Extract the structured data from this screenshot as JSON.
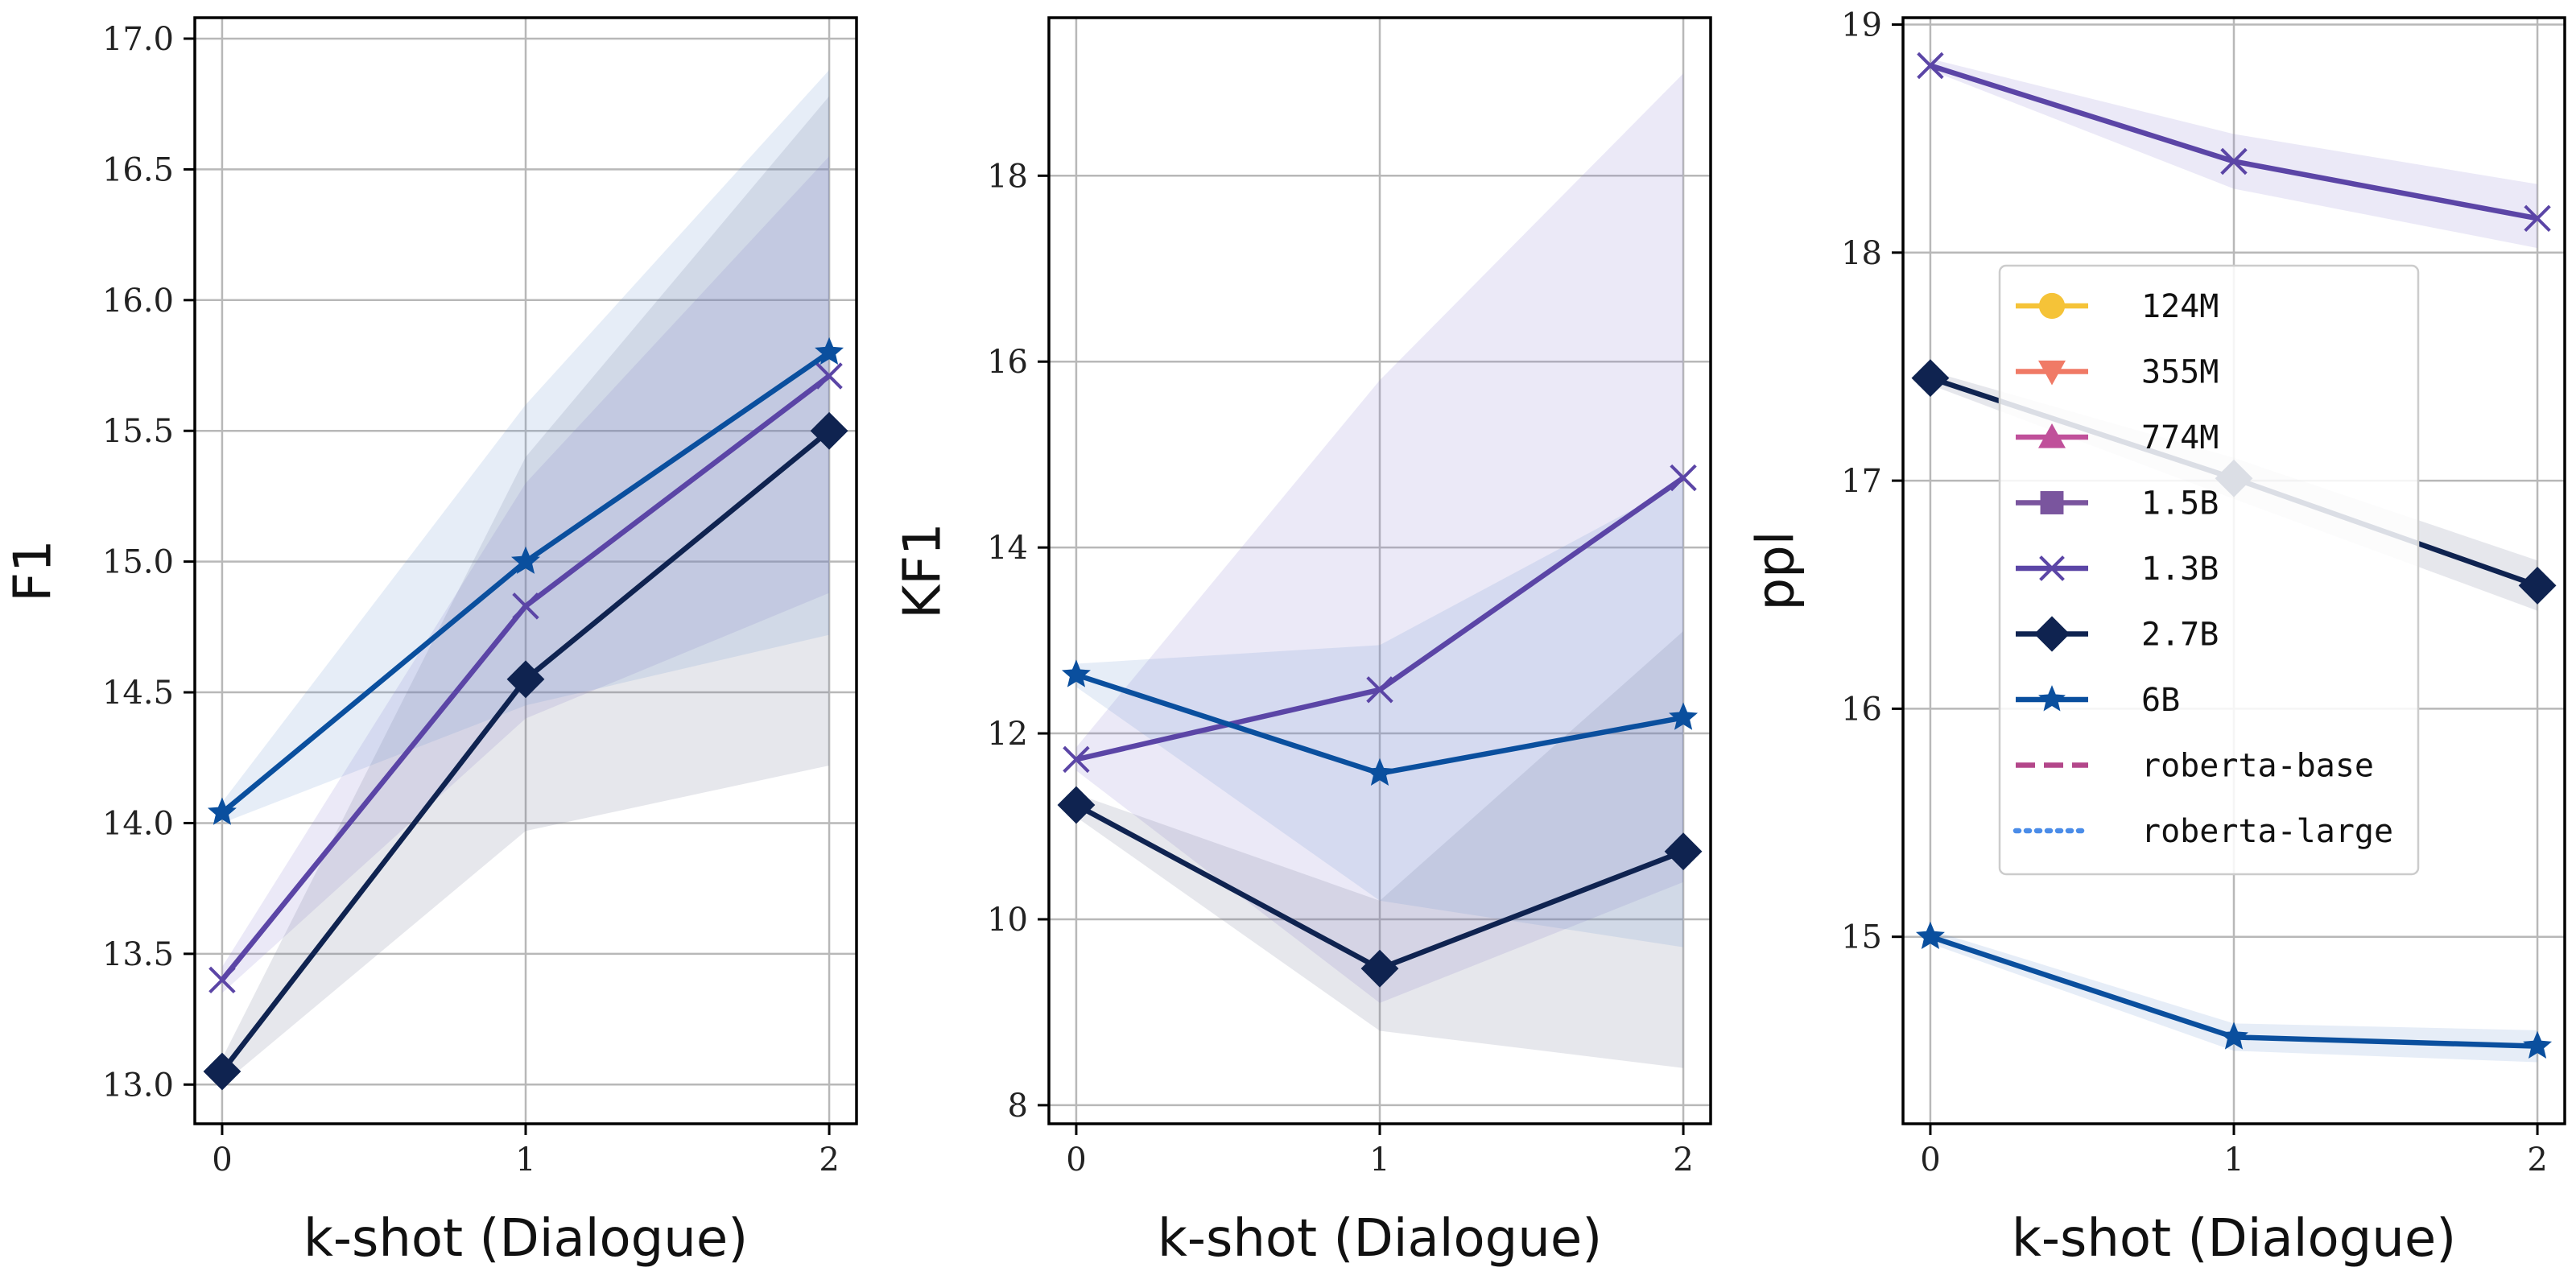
{
  "chart_data": [
    {
      "type": "line",
      "xlabel": "k-shot (Dialogue)",
      "ylabel": "F1",
      "x": [
        0,
        1,
        2
      ],
      "xticks": [
        "0",
        "1",
        "2"
      ],
      "ylim": [
        12.85,
        17.08
      ],
      "yticks": [
        "13.0",
        "13.5",
        "14.0",
        "14.5",
        "15.0",
        "15.5",
        "16.0",
        "16.5",
        "17.0"
      ],
      "grid": true,
      "series": [
        {
          "name": "1.3B",
          "values": [
            13.4,
            14.83,
            15.71
          ],
          "lower": [
            13.35,
            14.4,
            14.88
          ],
          "upper": [
            13.45,
            15.3,
            16.55
          ]
        },
        {
          "name": "2.7B",
          "values": [
            13.05,
            14.55,
            15.5
          ],
          "lower": [
            13.0,
            13.97,
            14.22
          ],
          "upper": [
            13.1,
            15.4,
            16.78
          ]
        },
        {
          "name": "6B",
          "values": [
            14.04,
            15.0,
            15.8
          ],
          "lower": [
            14.0,
            14.45,
            14.72
          ],
          "upper": [
            14.08,
            15.6,
            16.88
          ]
        }
      ]
    },
    {
      "type": "line",
      "xlabel": "k-shot (Dialogue)",
      "ylabel": "KF1",
      "x": [
        0,
        1,
        2
      ],
      "xticks": [
        "0",
        "1",
        "2"
      ],
      "ylim": [
        7.8,
        19.7
      ],
      "yticks": [
        "8",
        "10",
        "12",
        "14",
        "16",
        "18"
      ],
      "grid": true,
      "series": [
        {
          "name": "1.3B",
          "values": [
            11.72,
            12.47,
            14.75
          ],
          "lower": [
            11.6,
            9.1,
            10.4
          ],
          "upper": [
            11.85,
            15.8,
            19.1
          ]
        },
        {
          "name": "2.7B",
          "values": [
            11.23,
            9.47,
            10.73
          ],
          "lower": [
            11.1,
            8.8,
            8.4
          ],
          "upper": [
            11.35,
            10.2,
            13.1
          ]
        },
        {
          "name": "6B",
          "values": [
            12.63,
            11.57,
            12.17
          ],
          "lower": [
            12.5,
            10.2,
            9.7
          ],
          "upper": [
            12.75,
            12.95,
            14.7
          ]
        }
      ]
    },
    {
      "type": "line",
      "xlabel": "k-shot (Dialogue)",
      "ylabel": "ppl",
      "x": [
        0,
        1,
        2
      ],
      "xticks": [
        "0",
        "1",
        "2"
      ],
      "ylim": [
        14.18,
        19.03
      ],
      "yticks": [
        "15",
        "16",
        "17",
        "18",
        "19"
      ],
      "grid": true,
      "series": [
        {
          "name": "1.3B",
          "values": [
            18.82,
            18.4,
            18.15
          ],
          "lower": [
            18.8,
            18.28,
            18.02
          ],
          "upper": [
            18.85,
            18.52,
            18.3
          ]
        },
        {
          "name": "2.7B",
          "values": [
            17.45,
            17.01,
            16.54
          ],
          "lower": [
            17.42,
            16.92,
            16.43
          ],
          "upper": [
            17.48,
            17.1,
            16.65
          ]
        },
        {
          "name": "6B",
          "values": [
            15.0,
            14.56,
            14.52
          ],
          "lower": [
            14.97,
            14.5,
            14.45
          ],
          "upper": [
            15.03,
            14.62,
            14.59
          ]
        }
      ]
    }
  ],
  "legend": {
    "placement": "inside right panel, upper center",
    "entries": [
      {
        "label": "124M",
        "marker": "circle",
        "line": "solid"
      },
      {
        "label": "355M",
        "marker": "triangle-down",
        "line": "solid"
      },
      {
        "label": "774M",
        "marker": "triangle-up",
        "line": "solid"
      },
      {
        "label": "1.5B",
        "marker": "square",
        "line": "solid"
      },
      {
        "label": "1.3B",
        "marker": "x",
        "line": "solid"
      },
      {
        "label": "2.7B",
        "marker": "diamond",
        "line": "solid"
      },
      {
        "label": "6B",
        "marker": "star",
        "line": "solid"
      },
      {
        "label": "roberta-base",
        "marker": "none",
        "line": "dashed"
      },
      {
        "label": "roberta-large",
        "marker": "none",
        "line": "dotted"
      }
    ]
  },
  "styles": {
    "124M": {
      "color": "#f5c338",
      "fill": "#f5c338"
    },
    "355M": {
      "color": "#f07a66",
      "fill": "#f07a66"
    },
    "774M": {
      "color": "#c0509a",
      "fill": "#c0509a"
    },
    "1.5B": {
      "color": "#7a559e",
      "fill": "#7a559e"
    },
    "1.3B": {
      "color": "#5b45a6",
      "fill": "#8a7ad0"
    },
    "2.7B": {
      "color": "#0f2350",
      "fill": "#6a7390"
    },
    "6B": {
      "color": "#0a4f9e",
      "fill": "#6b95cf"
    },
    "roberta-base": {
      "color": "#b3478a",
      "fill": "#b3478a"
    },
    "roberta-large": {
      "color": "#4a8ce8",
      "fill": "#4a8ce8"
    }
  }
}
